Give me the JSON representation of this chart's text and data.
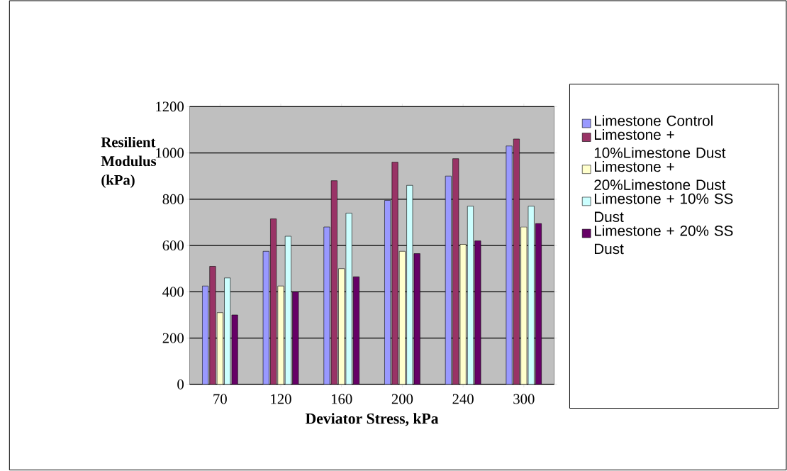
{
  "chart_data": {
    "type": "bar",
    "xlabel": "Deviator Stress, kPa",
    "ylabel": "Resilient Modulus (kPa)",
    "categories": [
      "70",
      "120",
      "160",
      "200",
      "240",
      "300"
    ],
    "ylim": [
      0,
      1200
    ],
    "yticks": [
      0,
      200,
      400,
      600,
      800,
      1000,
      1200
    ],
    "grid": "y",
    "legend": "right",
    "series": [
      {
        "name": "Limestone Control",
        "color": "#9999ff",
        "values": [
          425,
          575,
          680,
          795,
          900,
          1030
        ]
      },
      {
        "name": "Limestone + 10%Limestone Dust",
        "color": "#993366",
        "values": [
          510,
          715,
          880,
          960,
          975,
          1060
        ]
      },
      {
        "name": "Limestone + 20%Limestone Dust",
        "color": "#ffffcc",
        "values": [
          310,
          425,
          500,
          575,
          605,
          680
        ]
      },
      {
        "name": "Limestone + 10% SS Dust",
        "color": "#ccffff",
        "values": [
          460,
          640,
          740,
          860,
          770,
          770
        ]
      },
      {
        "name": "Limestone + 20% SS Dust",
        "color": "#660066",
        "values": [
          300,
          400,
          465,
          565,
          620,
          695
        ]
      }
    ]
  }
}
